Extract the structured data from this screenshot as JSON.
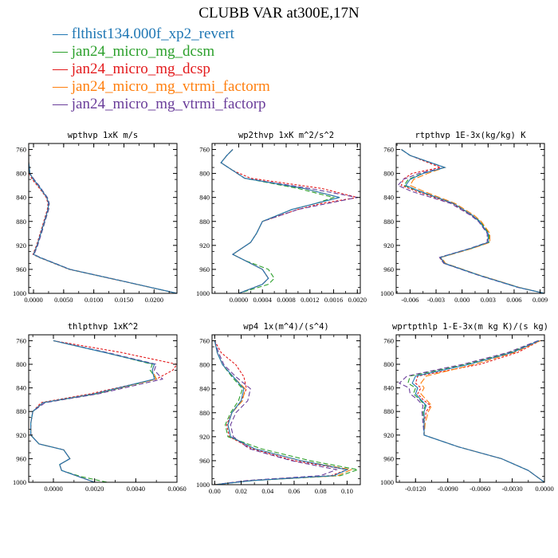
{
  "title": "CLUBB VAR at300E,17N",
  "legend": [
    {
      "label": "flthist134.000f_xp2_revert",
      "color": "#1f77b4"
    },
    {
      "label": "jan24_micro_mg_dcsm",
      "color": "#2ca02c"
    },
    {
      "label": "jan24_micro_mg_dcsp",
      "color": "#e31a1c"
    },
    {
      "label": "jan24_micro_mg_vtrmi_factorm",
      "color": "#ff7f0e"
    },
    {
      "label": "jan24_micro_mg_vtrmi_factorp",
      "color": "#6a3d9a"
    }
  ],
  "chart_data": [
    {
      "type": "line",
      "title": "wpthvp  1xK m/s",
      "xlim": [
        -0.0008,
        0.0238
      ],
      "ylim": [
        750,
        1000
      ],
      "x_ticks": [
        "0.0000",
        "0.0050",
        "0.0100",
        "0.0150",
        "0.0200"
      ],
      "x_tick_values": [
        0,
        0.005,
        0.01,
        0.015,
        0.02
      ],
      "y_ticks": [
        "760",
        "800",
        "840",
        "880",
        "920",
        "960",
        "1000"
      ],
      "y_tick_values": [
        760,
        800,
        840,
        880,
        920,
        960,
        1000
      ],
      "pressure": [
        760,
        780,
        800,
        810,
        820,
        830,
        840,
        850,
        860,
        880,
        900,
        920,
        935,
        940,
        960,
        980,
        1000
      ],
      "series": [
        {
          "values": [
            -0.0008,
            -0.0008,
            -0.0006,
            0.0,
            0.0008,
            0.0015,
            0.0022,
            0.0025,
            0.0024,
            0.0018,
            0.0012,
            0.0006,
            0.0,
            0.001,
            0.006,
            0.015,
            0.0238
          ]
        },
        {
          "values": [
            -0.0008,
            -0.0008,
            -0.0006,
            0.0,
            0.0008,
            0.0015,
            0.0023,
            0.0026,
            0.0025,
            0.0019,
            0.0013,
            0.0006,
            0.0,
            0.001,
            0.006,
            0.015,
            0.0238
          ]
        },
        {
          "values": [
            -0.0008,
            -0.0008,
            -0.0007,
            -0.0002,
            0.0006,
            0.0014,
            0.0021,
            0.0024,
            0.0023,
            0.0017,
            0.0011,
            0.0005,
            -0.0001,
            0.0009,
            0.0059,
            0.0149,
            0.0238
          ]
        },
        {
          "values": [
            -0.0008,
            -0.0008,
            -0.0006,
            0.0,
            0.0008,
            0.0015,
            0.0022,
            0.0025,
            0.0024,
            0.0018,
            0.0012,
            0.0006,
            0.0,
            0.001,
            0.006,
            0.015,
            0.0238
          ]
        },
        {
          "values": [
            -0.0008,
            -0.0008,
            -0.0006,
            0.0001,
            0.0009,
            0.0016,
            0.0023,
            0.0026,
            0.0025,
            0.0019,
            0.0013,
            0.0007,
            0.0001,
            0.0011,
            0.0061,
            0.0151,
            0.0238
          ]
        }
      ]
    },
    {
      "type": "line",
      "title": "wp2thvp  1xK m^2/s^2",
      "xlim": [
        -0.00045,
        0.00205
      ],
      "ylim": [
        750,
        1000
      ],
      "x_ticks": [
        "0.0000",
        "0.0004",
        "0.0008",
        "0.0012",
        "0.0016",
        "0.0020"
      ],
      "x_tick_values": [
        0,
        0.0004,
        0.0008,
        0.0012,
        0.0016,
        0.002
      ],
      "y_ticks": [
        "760",
        "800",
        "840",
        "880",
        "920",
        "960",
        "1000"
      ],
      "y_tick_values": [
        760,
        800,
        840,
        880,
        920,
        960,
        1000
      ],
      "pressure": [
        760,
        770,
        782,
        795,
        808,
        825,
        840,
        850,
        860,
        880,
        900,
        915,
        935,
        945,
        960,
        975,
        985,
        1000
      ],
      "series": [
        {
          "values": [
            -0.0001,
            -0.0002,
            -0.0003,
            -0.0001,
            0.0001,
            0.0011,
            0.0017,
            0.0013,
            0.0009,
            0.0004,
            0.0003,
            0.0002,
            -0.0001,
            0.0001,
            0.0004,
            0.0005,
            0.0004,
            0.0
          ]
        },
        {
          "values": [
            -0.0001,
            -0.0002,
            -0.0003,
            -0.0001,
            0.0001,
            0.001,
            0.0016,
            0.0013,
            0.0009,
            0.0004,
            0.0003,
            0.0002,
            -0.0001,
            0.0001,
            0.0005,
            0.0006,
            0.0005,
            0.0
          ]
        },
        {
          "values": [
            -0.0001,
            -0.0002,
            -0.0003,
            -0.0001,
            0.0002,
            0.0014,
            0.002,
            0.0014,
            0.001,
            0.0004,
            0.0003,
            0.0002,
            -0.0001,
            0.0001,
            0.0004,
            0.0005,
            0.0004,
            0.0
          ]
        },
        {
          "values": [
            -0.0001,
            -0.0002,
            -0.0003,
            -0.0001,
            0.0001,
            0.0011,
            0.0017,
            0.0013,
            0.0009,
            0.0004,
            0.0003,
            0.0002,
            -0.0001,
            0.0001,
            0.0004,
            0.0005,
            0.0004,
            0.0
          ]
        },
        {
          "values": [
            -0.0001,
            -0.0002,
            -0.0003,
            -0.0001,
            0.0001,
            0.0012,
            0.002,
            0.0015,
            0.001,
            0.0004,
            0.0003,
            0.0002,
            -0.0001,
            0.0001,
            0.0004,
            0.0005,
            0.0004,
            0.0
          ]
        }
      ]
    },
    {
      "type": "line",
      "title": "rtpthvp  1E-3x(kg/kg) K",
      "xlim": [
        -0.0076,
        0.0095
      ],
      "ylim": [
        750,
        1000
      ],
      "x_ticks": [
        "-0.006",
        "-0.003",
        "0.000",
        "0.003",
        "0.006",
        "0.009"
      ],
      "x_tick_values": [
        -0.006,
        -0.003,
        0,
        0.003,
        0.006,
        0.009
      ],
      "y_ticks": [
        "760",
        "800",
        "840",
        "880",
        "920",
        "960",
        "1000"
      ],
      "y_tick_values": [
        760,
        800,
        840,
        880,
        920,
        960,
        1000
      ],
      "pressure": [
        760,
        770,
        790,
        800,
        810,
        820,
        830,
        850,
        870,
        880,
        900,
        915,
        925,
        940,
        950,
        970,
        990,
        1000
      ],
      "series": [
        {
          "values": [
            -0.007,
            -0.006,
            -0.002,
            -0.0045,
            -0.006,
            -0.0065,
            -0.0048,
            -0.001,
            0.0012,
            0.002,
            0.003,
            0.003,
            0.001,
            -0.0025,
            -0.002,
            0.002,
            0.0065,
            0.0095
          ]
        },
        {
          "values": [
            -0.007,
            -0.006,
            -0.002,
            -0.0046,
            -0.0062,
            -0.0067,
            -0.0049,
            -0.001,
            0.0012,
            0.0021,
            0.0031,
            0.0031,
            0.0011,
            -0.0025,
            -0.002,
            0.002,
            0.0065,
            0.0095
          ]
        },
        {
          "values": [
            -0.007,
            -0.006,
            -0.0025,
            -0.0058,
            -0.0068,
            -0.007,
            -0.0052,
            -0.0011,
            0.0011,
            0.002,
            0.003,
            0.003,
            0.001,
            -0.0026,
            -0.0021,
            0.002,
            0.0065,
            0.0095
          ]
        },
        {
          "values": [
            -0.007,
            -0.006,
            -0.002,
            -0.004,
            -0.0056,
            -0.006,
            -0.0044,
            -0.0008,
            0.0014,
            0.0022,
            0.0032,
            0.0032,
            0.0012,
            -0.0024,
            -0.0019,
            0.0021,
            0.0066,
            0.0095
          ]
        },
        {
          "values": [
            -0.007,
            -0.006,
            -0.002,
            -0.005,
            -0.0068,
            -0.0074,
            -0.0058,
            -0.0013,
            0.001,
            0.0019,
            0.0029,
            0.0029,
            0.0009,
            -0.0026,
            -0.0021,
            0.0019,
            0.0064,
            0.0095
          ]
        }
      ]
    },
    {
      "type": "line",
      "title": "thlpthvp  1xK^2",
      "xlim": [
        -0.0012,
        0.006
      ],
      "ylim": [
        750,
        1000
      ],
      "x_ticks": [
        "0.0000",
        "0.0020",
        "0.0040",
        "0.0060"
      ],
      "x_tick_values": [
        0,
        0.002,
        0.004,
        0.006
      ],
      "y_ticks": [
        "760",
        "800",
        "840",
        "880",
        "920",
        "960",
        "1000"
      ],
      "y_tick_values": [
        760,
        800,
        840,
        880,
        920,
        960,
        1000
      ],
      "pressure": [
        760,
        780,
        800,
        810,
        825,
        850,
        865,
        880,
        900,
        920,
        935,
        945,
        960,
        970,
        980,
        990,
        1000
      ],
      "series": [
        {
          "values": [
            0.0,
            0.0025,
            0.0049,
            0.0048,
            0.0049,
            0.002,
            -0.0005,
            -0.001,
            -0.0011,
            -0.0011,
            -0.0007,
            0.0005,
            0.0008,
            0.0003,
            0.0004,
            0.0012,
            0.002
          ]
        },
        {
          "values": [
            0.0,
            0.0025,
            0.0048,
            0.0047,
            0.005,
            0.0021,
            -0.0005,
            -0.001,
            -0.0011,
            -0.0011,
            -0.0007,
            0.0005,
            0.0008,
            0.0003,
            0.0004,
            0.0013,
            0.0026
          ]
        },
        {
          "values": [
            0.0,
            0.0033,
            0.006,
            0.0058,
            0.005,
            0.0018,
            -0.0006,
            -0.001,
            -0.0011,
            -0.0011,
            -0.0007,
            0.0005,
            0.0008,
            0.0003,
            0.0004,
            0.0012,
            0.002
          ]
        },
        {
          "values": [
            0.0,
            0.0025,
            0.0049,
            0.0048,
            0.005,
            0.002,
            -0.0005,
            -0.001,
            -0.0011,
            -0.0011,
            -0.0007,
            0.0005,
            0.0008,
            0.0003,
            0.0004,
            0.0012,
            0.002
          ]
        },
        {
          "values": [
            0.0,
            0.0026,
            0.005,
            0.0049,
            0.0053,
            0.0022,
            -0.0004,
            -0.001,
            -0.0011,
            -0.0011,
            -0.0007,
            0.0005,
            0.0008,
            0.0003,
            0.0004,
            0.0012,
            0.002
          ]
        }
      ]
    },
    {
      "type": "line",
      "title": "wp4  1x(m^4)/(s^4)",
      "xlim": [
        -0.002,
        0.11
      ],
      "ylim": [
        750,
        1000
      ],
      "x_ticks": [
        "0.00",
        "0.02",
        "0.04",
        "0.06",
        "0.08",
        "0.10"
      ],
      "x_tick_values": [
        0,
        0.02,
        0.04,
        0.06,
        0.08,
        0.1
      ],
      "y_ticks": [
        "760",
        "800",
        "840",
        "880",
        "920",
        "960",
        "1000"
      ],
      "y_tick_values": [
        760,
        800,
        840,
        880,
        920,
        960,
        1000
      ],
      "pressure": [
        760,
        780,
        800,
        820,
        840,
        860,
        880,
        900,
        920,
        940,
        960,
        975,
        985,
        993,
        1000
      ],
      "series": [
        {
          "values": [
            0.0,
            0.002,
            0.006,
            0.014,
            0.022,
            0.02,
            0.013,
            0.01,
            0.012,
            0.03,
            0.065,
            0.1,
            0.09,
            0.03,
            0.0
          ]
        },
        {
          "values": [
            0.0,
            0.002,
            0.006,
            0.013,
            0.021,
            0.018,
            0.012,
            0.008,
            0.01,
            0.035,
            0.072,
            0.108,
            0.095,
            0.03,
            0.0
          ]
        },
        {
          "values": [
            0.0,
            0.005,
            0.016,
            0.022,
            0.024,
            0.02,
            0.013,
            0.009,
            0.011,
            0.028,
            0.06,
            0.1,
            0.088,
            0.028,
            0.0
          ]
        },
        {
          "values": [
            0.0,
            0.002,
            0.006,
            0.014,
            0.023,
            0.021,
            0.013,
            0.01,
            0.012,
            0.03,
            0.065,
            0.103,
            0.093,
            0.03,
            0.0
          ]
        },
        {
          "values": [
            0.0,
            0.003,
            0.007,
            0.016,
            0.027,
            0.025,
            0.016,
            0.012,
            0.014,
            0.026,
            0.058,
            0.092,
            0.08,
            0.025,
            0.0
          ]
        }
      ]
    },
    {
      "type": "line",
      "title": "wprtpthlp  1-E-3x(m kg K)/(s kg)",
      "xlim": [
        -0.0138,
        0.0
      ],
      "ylim": [
        750,
        1000
      ],
      "x_ticks": [
        "-0.0120",
        "-0.0090",
        "-0.0060",
        "-0.0030",
        "0.0000"
      ],
      "x_tick_values": [
        -0.012,
        -0.009,
        -0.006,
        -0.003,
        0
      ],
      "y_ticks": [
        "760",
        "800",
        "840",
        "880",
        "920",
        "960",
        "1000"
      ],
      "y_tick_values": [
        760,
        800,
        840,
        880,
        920,
        960,
        1000
      ],
      "pressure": [
        760,
        780,
        800,
        820,
        832,
        840,
        850,
        860,
        870,
        880,
        900,
        920,
        940,
        960,
        980,
        1000
      ],
      "series": [
        {
          "values": [
            -0.0005,
            -0.003,
            -0.007,
            -0.012,
            -0.0123,
            -0.0118,
            -0.012,
            -0.0115,
            -0.011,
            -0.0112,
            -0.0112,
            -0.0112,
            -0.008,
            -0.004,
            -0.0015,
            0.0
          ]
        },
        {
          "values": [
            -0.0005,
            -0.0032,
            -0.0073,
            -0.0125,
            -0.0127,
            -0.012,
            -0.0122,
            -0.0116,
            -0.0111,
            -0.0113,
            -0.0112,
            -0.0112,
            -0.008,
            -0.004,
            -0.0015,
            0.0
          ]
        },
        {
          "values": [
            -0.0004,
            -0.0025,
            -0.006,
            -0.0118,
            -0.012,
            -0.0115,
            -0.0118,
            -0.0113,
            -0.0106,
            -0.011,
            -0.0112,
            -0.0112,
            -0.008,
            -0.004,
            -0.0015,
            0.0
          ]
        },
        {
          "values": [
            -0.0004,
            -0.0028,
            -0.0065,
            -0.011,
            -0.0115,
            -0.0112,
            -0.0115,
            -0.011,
            -0.0105,
            -0.0108,
            -0.0111,
            -0.0112,
            -0.008,
            -0.004,
            -0.0015,
            0.0
          ]
        },
        {
          "values": [
            -0.0006,
            -0.0034,
            -0.0076,
            -0.0128,
            -0.0135,
            -0.0126,
            -0.0125,
            -0.0118,
            -0.0113,
            -0.0114,
            -0.0113,
            -0.0112,
            -0.008,
            -0.004,
            -0.0015,
            0.0
          ]
        }
      ]
    }
  ]
}
